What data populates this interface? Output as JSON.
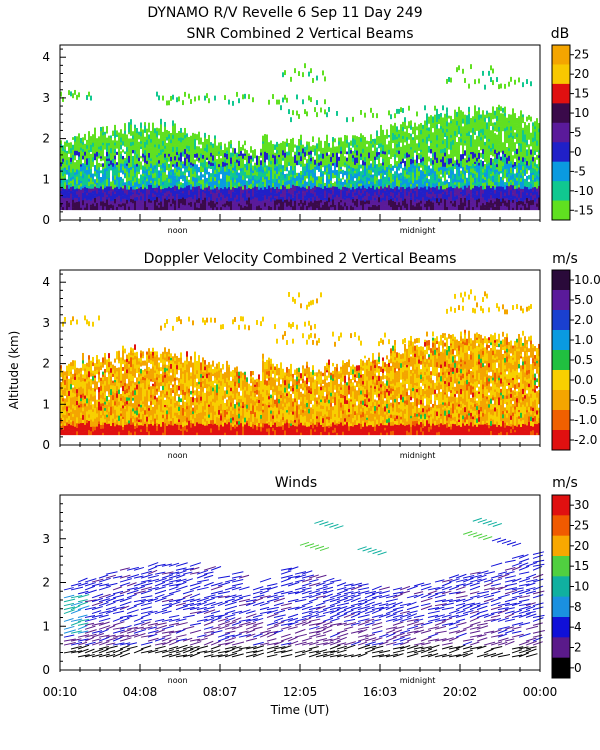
{
  "figure": {
    "title_line1": "DYNAMO R/V Revelle    6 Sep 11 Day 249",
    "ylabel_shared": "Altitude (km)",
    "xlabel": "Time (UT)",
    "time_ticks": [
      "00:10",
      "04:08",
      "08:07",
      "12:05",
      "16:03",
      "20:02",
      "00:00"
    ],
    "day_markers": [
      "noon",
      "midnight"
    ]
  },
  "chart_data": [
    {
      "type": "heatmap",
      "title": "SNR Combined 2 Vertical Beams",
      "ylabel": "Altitude (km)",
      "xlabel": "Time (UT)",
      "ylim": [
        0,
        4.3
      ],
      "yticks": [
        "0",
        "1",
        "2",
        "3",
        "4"
      ],
      "colorbar": {
        "unit": "dB",
        "labels": [
          "25",
          "20",
          "15",
          "10",
          "5",
          "0",
          "-5",
          "-10",
          "-15"
        ],
        "colors": [
          "#f4a500",
          "#f8c800",
          "#e01010",
          "#3a0a4a",
          "#5a1a9a",
          "#2020c8",
          "#0a9ae0",
          "#10c890",
          "#60e020"
        ]
      }
    },
    {
      "type": "heatmap",
      "title": "Doppler Velocity Combined 2 Vertical Beams",
      "ylabel": "Altitude (km)",
      "xlabel": "Time (UT)",
      "ylim": [
        0,
        4.3
      ],
      "yticks": [
        "0",
        "1",
        "2",
        "3",
        "4"
      ],
      "colorbar": {
        "unit": "m/s",
        "labels": [
          "10.0",
          "5.0",
          "2.0",
          "1.0",
          "0.5",
          "0.0",
          "-0.5",
          "-1.0",
          "-2.0"
        ],
        "colors": [
          "#2a0a3a",
          "#5a1a9a",
          "#1a40d0",
          "#0a9ae0",
          "#20c040",
          "#f8d000",
          "#f4a500",
          "#f06000",
          "#e01010"
        ]
      }
    },
    {
      "type": "scatter",
      "title": "Winds",
      "ylabel": "Altitude (km)",
      "xlabel": "Time (UT)",
      "ylim": [
        0,
        4.0
      ],
      "yticks": [
        "0",
        "1",
        "2",
        "3"
      ],
      "colorbar": {
        "unit": "m/s",
        "labels": [
          "30",
          "25",
          "20",
          "15",
          "10",
          "8",
          "4",
          "2",
          "0"
        ],
        "colors": [
          "#e01010",
          "#f05a00",
          "#f8a800",
          "#50d040",
          "#10b0a0",
          "#1a90e0",
          "#1010d8",
          "#5a1a8a",
          "#000000"
        ]
      }
    }
  ]
}
